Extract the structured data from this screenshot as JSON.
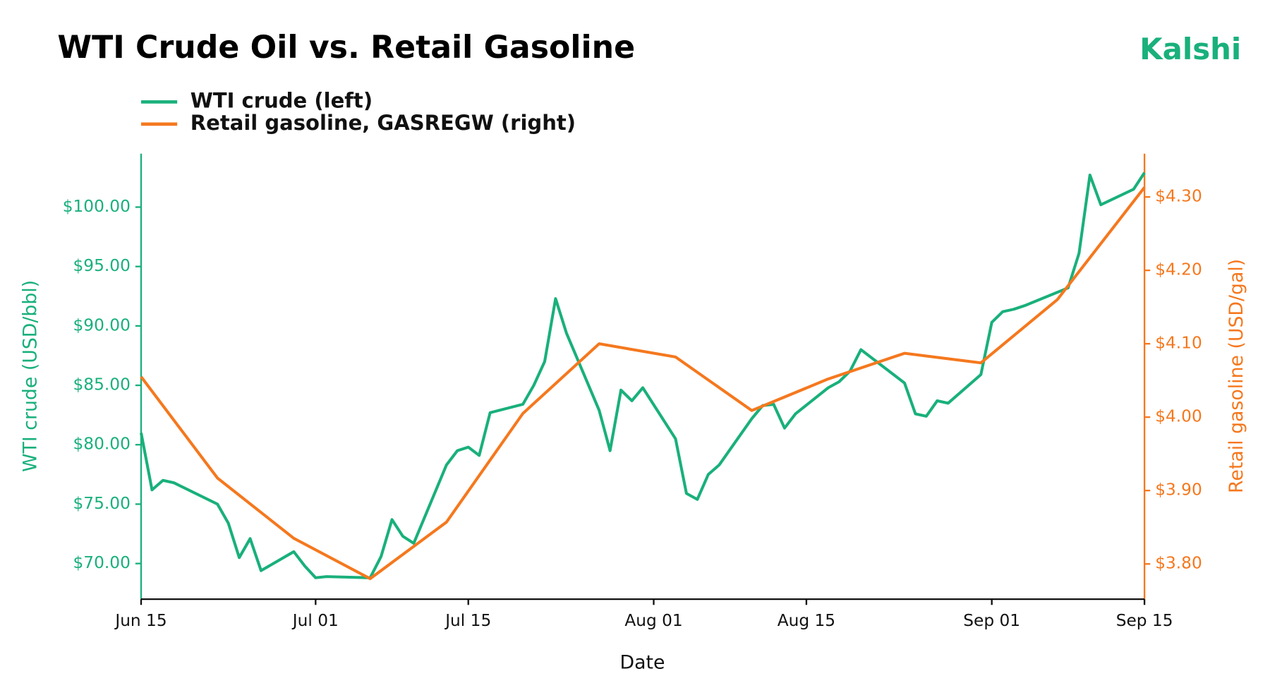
{
  "chart_data": {
    "type": "line",
    "title": "WTI Crude Oil vs. Retail Gasoline",
    "brand": "Kalshi",
    "xlabel": "Date",
    "ylabel": "WTI crude (USD/bbl)",
    "y2label": "Retail gasoline (USD/gal)",
    "xlim": [
      "Jun 15",
      "Sep 15"
    ],
    "xticks": [
      "Jun 15",
      "Jul 01",
      "Jul 15",
      "Aug 01",
      "Aug 15",
      "Sep 01",
      "Sep 15"
    ],
    "ylim": [
      67,
      104.5
    ],
    "yticks": [
      {
        "value": 70,
        "label": "$70.00"
      },
      {
        "value": 75,
        "label": "$75.00"
      },
      {
        "value": 80,
        "label": "$80.00"
      },
      {
        "value": 85,
        "label": "$85.00"
      },
      {
        "value": 90,
        "label": "$90.00"
      },
      {
        "value": 95,
        "label": "$95.00"
      },
      {
        "value": 100,
        "label": "$100.00"
      }
    ],
    "y2lim": [
      3.752,
      4.359
    ],
    "y2ticks": [
      {
        "value": 3.8,
        "label": "$3.80"
      },
      {
        "value": 3.9,
        "label": "$3.90"
      },
      {
        "value": 4.0,
        "label": "$4.00"
      },
      {
        "value": 4.1,
        "label": "$4.10"
      },
      {
        "value": 4.2,
        "label": "$4.20"
      },
      {
        "value": 4.3,
        "label": "$4.30"
      }
    ],
    "legend": "upper left",
    "series": [
      {
        "name": "WTI crude (left)",
        "color": "#19b07b",
        "axis": "y",
        "x": [
          "Jun 15",
          "Jun 16",
          "Jun 17",
          "Jun 18",
          "Jun 22",
          "Jun 23",
          "Jun 24",
          "Jun 25",
          "Jun 26",
          "Jun 29",
          "Jun 30",
          "Jul 01",
          "Jul 02",
          "Jul 06",
          "Jul 07",
          "Jul 08",
          "Jul 09",
          "Jul 10",
          "Jul 13",
          "Jul 14",
          "Jul 15",
          "Jul 16",
          "Jul 17",
          "Jul 20",
          "Jul 21",
          "Jul 22",
          "Jul 23",
          "Jul 24",
          "Jul 27",
          "Jul 28",
          "Jul 29",
          "Jul 30",
          "Jul 31",
          "Aug 03",
          "Aug 04",
          "Aug 05",
          "Aug 06",
          "Aug 07",
          "Aug 10",
          "Aug 11",
          "Aug 12",
          "Aug 13",
          "Aug 14",
          "Aug 17",
          "Aug 18",
          "Aug 19",
          "Aug 20",
          "Aug 24",
          "Aug 25",
          "Aug 26",
          "Aug 27",
          "Aug 28",
          "Aug 31",
          "Sep 01",
          "Sep 02",
          "Sep 03",
          "Sep 04",
          "Sep 08",
          "Sep 09",
          "Sep 10",
          "Sep 11",
          "Sep 14",
          "Sep 15"
        ],
        "values": [
          81.0,
          76.2,
          77.0,
          76.8,
          75.0,
          73.4,
          70.5,
          72.1,
          69.4,
          71.0,
          69.8,
          68.8,
          68.9,
          68.8,
          70.6,
          73.7,
          72.3,
          71.7,
          78.3,
          79.5,
          79.8,
          79.1,
          82.7,
          83.4,
          85.0,
          87.0,
          92.3,
          89.4,
          82.9,
          79.5,
          84.6,
          83.7,
          84.8,
          80.5,
          75.9,
          75.4,
          77.5,
          78.3,
          82.2,
          83.3,
          83.4,
          81.4,
          82.6,
          84.8,
          85.3,
          86.2,
          88.0,
          85.2,
          82.6,
          82.4,
          83.7,
          83.5,
          85.9,
          90.3,
          91.2,
          91.4,
          91.7,
          93.2,
          96.1,
          102.7,
          100.2,
          101.5,
          102.9
        ]
      },
      {
        "name": "Retail gasoline, GASREGW (right)",
        "color": "#f5781e",
        "axis": "y2",
        "x": [
          "Jun 15",
          "Jun 22",
          "Jun 29",
          "Jul 06",
          "Jul 13",
          "Jul 20",
          "Jul 27",
          "Aug 03",
          "Aug 10",
          "Aug 17",
          "Aug 24",
          "Aug 31",
          "Sep 07",
          "Sep 15"
        ],
        "values": [
          4.055,
          3.917,
          3.835,
          3.78,
          3.857,
          4.005,
          4.1,
          4.082,
          4.009,
          4.052,
          4.087,
          4.074,
          4.16,
          4.313
        ]
      }
    ]
  }
}
